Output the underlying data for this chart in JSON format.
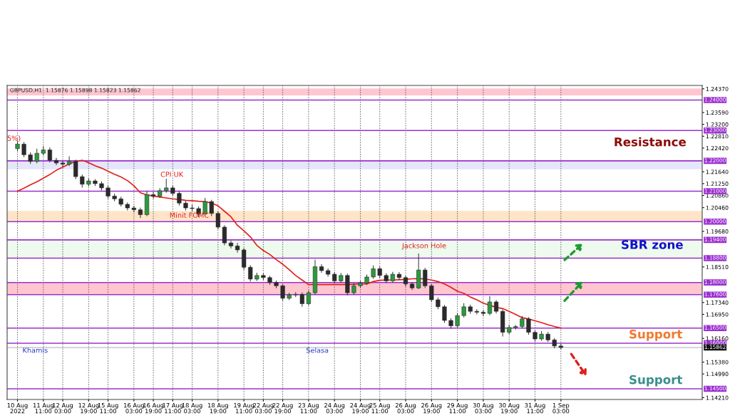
{
  "chart_data": {
    "type": "candlestick",
    "title": "GBPUSD,H1  1.15876 1.15898 1.15823 1.15862",
    "categories": [
      "10 Aug 2022",
      null,
      null,
      null,
      "11 Aug 11:00",
      null,
      null,
      "12 Aug 03:00",
      null,
      null,
      null,
      "12 Aug 19:00",
      null,
      null,
      "15 Aug 11:00",
      null,
      null,
      null,
      "16 Aug 03:00",
      null,
      null,
      "16 Aug 19:00",
      null,
      null,
      "17 Aug 11:00",
      null,
      null,
      "18 Aug 03:00",
      null,
      null,
      null,
      "18 Aug 19:00",
      null,
      null,
      null,
      "19 Aug 11:00",
      null,
      null,
      "22 Aug 03:00",
      null,
      null,
      "22 Aug 19:00",
      null,
      null,
      null,
      "23 Aug 11:00",
      null,
      null,
      null,
      "24 Aug 03:00",
      null,
      null,
      null,
      "24 Aug 19:00",
      null,
      null,
      "25 Aug 11:00",
      null,
      null,
      null,
      "26 Aug 03:00",
      null,
      null,
      null,
      "26 Aug 19:00",
      null,
      null,
      null,
      "29 Aug 11:00",
      null,
      null,
      null,
      "30 Aug 03:00",
      null,
      null,
      null,
      "30 Aug 19:00",
      null,
      null,
      null,
      "31 Aug 11:00",
      null,
      null,
      null,
      "1 Sep 03:00"
    ],
    "ohlc": [
      [
        1.224,
        1.2265,
        1.2232,
        1.2255
      ],
      [
        1.2255,
        1.2262,
        1.2212,
        1.222
      ],
      [
        1.222,
        1.2228,
        1.219,
        1.2198
      ],
      [
        1.2198,
        1.224,
        1.2192,
        1.2225
      ],
      [
        1.2225,
        1.2248,
        1.2218,
        1.2236
      ],
      [
        1.2236,
        1.2244,
        1.2195,
        1.2202
      ],
      [
        1.2202,
        1.221,
        1.2186,
        1.2193
      ],
      [
        1.2193,
        1.22,
        1.218,
        1.2189
      ],
      [
        1.2189,
        1.2215,
        1.2183,
        1.2198
      ],
      [
        1.2198,
        1.2204,
        1.214,
        1.2148
      ],
      [
        1.2148,
        1.2155,
        1.2112,
        1.2123
      ],
      [
        1.2123,
        1.2142,
        1.2116,
        1.2134
      ],
      [
        1.2134,
        1.214,
        1.2117,
        1.2125
      ],
      [
        1.2125,
        1.2132,
        1.2103,
        1.2111
      ],
      [
        1.2111,
        1.2118,
        1.2076,
        1.2084
      ],
      [
        1.2084,
        1.2092,
        1.2067,
        1.2075
      ],
      [
        1.2075,
        1.2082,
        1.205,
        1.2057
      ],
      [
        1.2057,
        1.2063,
        1.2037,
        1.2045
      ],
      [
        1.2045,
        1.2052,
        1.2031,
        1.2039
      ],
      [
        1.2039,
        1.2046,
        1.2012,
        1.2023
      ],
      [
        1.2023,
        1.21,
        1.2018,
        1.2089
      ],
      [
        1.2089,
        1.2097,
        1.2076,
        1.2084
      ],
      [
        1.2084,
        1.211,
        1.2078,
        1.2102
      ],
      [
        1.2102,
        1.2141,
        1.2095,
        1.2111
      ],
      [
        1.2111,
        1.2118,
        1.2085,
        1.2093
      ],
      [
        1.2093,
        1.21,
        1.2053,
        1.2061
      ],
      [
        1.2061,
        1.2068,
        1.2037,
        1.2045
      ],
      [
        1.2045,
        1.2055,
        1.2035,
        1.2043
      ],
      [
        1.2043,
        1.205,
        1.2015,
        1.2025
      ],
      [
        1.2025,
        1.2078,
        1.202,
        1.2066
      ],
      [
        1.2066,
        1.2072,
        1.2018,
        1.2027
      ],
      [
        1.2027,
        1.2033,
        1.1975,
        1.1982
      ],
      [
        1.1982,
        1.1988,
        1.1922,
        1.193
      ],
      [
        1.193,
        1.1937,
        1.1912,
        1.192
      ],
      [
        1.192,
        1.193,
        1.1898,
        1.1907
      ],
      [
        1.1907,
        1.1913,
        1.1842,
        1.185
      ],
      [
        1.185,
        1.1857,
        1.1803,
        1.1811
      ],
      [
        1.1811,
        1.1832,
        1.1805,
        1.1823
      ],
      [
        1.1823,
        1.183,
        1.1808,
        1.1816
      ],
      [
        1.1816,
        1.1822,
        1.1792,
        1.18
      ],
      [
        1.18,
        1.1806,
        1.1781,
        1.1789
      ],
      [
        1.1789,
        1.1795,
        1.174,
        1.1748
      ],
      [
        1.1748,
        1.1766,
        1.1742,
        1.1759
      ],
      [
        1.1759,
        1.1768,
        1.1752,
        1.1761
      ],
      [
        1.1761,
        1.1767,
        1.172,
        1.173
      ],
      [
        1.173,
        1.1773,
        1.1725,
        1.1766
      ],
      [
        1.1766,
        1.1875,
        1.176,
        1.1852
      ],
      [
        1.1852,
        1.186,
        1.1832,
        1.1839
      ],
      [
        1.1839,
        1.1846,
        1.1819,
        1.1827
      ],
      [
        1.1827,
        1.1834,
        1.1797,
        1.1805
      ],
      [
        1.1805,
        1.1831,
        1.1799,
        1.1823
      ],
      [
        1.1823,
        1.1829,
        1.1758,
        1.1766
      ],
      [
        1.1766,
        1.1797,
        1.176,
        1.1789
      ],
      [
        1.1789,
        1.1805,
        1.1782,
        1.1798
      ],
      [
        1.1798,
        1.1826,
        1.1792,
        1.1818
      ],
      [
        1.1818,
        1.1856,
        1.1812,
        1.1845
      ],
      [
        1.1845,
        1.1852,
        1.1815,
        1.1823
      ],
      [
        1.1823,
        1.183,
        1.1798,
        1.1805
      ],
      [
        1.1805,
        1.1835,
        1.1799,
        1.1827
      ],
      [
        1.1827,
        1.1834,
        1.1809,
        1.1816
      ],
      [
        1.1816,
        1.1822,
        1.1787,
        1.1795
      ],
      [
        1.1795,
        1.18,
        1.1775,
        1.1782
      ],
      [
        1.1782,
        1.1895,
        1.1778,
        1.1841
      ],
      [
        1.1841,
        1.1848,
        1.1782,
        1.1789
      ],
      [
        1.1789,
        1.1795,
        1.1736,
        1.1743
      ],
      [
        1.1743,
        1.175,
        1.1712,
        1.172
      ],
      [
        1.172,
        1.1726,
        1.1667,
        1.1675
      ],
      [
        1.1675,
        1.1682,
        1.1648,
        1.1657
      ],
      [
        1.1657,
        1.1699,
        1.1652,
        1.1691
      ],
      [
        1.1691,
        1.1732,
        1.1685,
        1.172
      ],
      [
        1.172,
        1.1727,
        1.1697,
        1.1705
      ],
      [
        1.1705,
        1.1712,
        1.1695,
        1.1702
      ],
      [
        1.1702,
        1.1709,
        1.169,
        1.1698
      ],
      [
        1.1698,
        1.1755,
        1.1692,
        1.1736
      ],
      [
        1.1736,
        1.1742,
        1.1698,
        1.1705
      ],
      [
        1.1705,
        1.1711,
        1.1622,
        1.1636
      ],
      [
        1.1636,
        1.166,
        1.163,
        1.1652
      ],
      [
        1.1652,
        1.166,
        1.1645,
        1.1655
      ],
      [
        1.1655,
        1.169,
        1.1649,
        1.168
      ],
      [
        1.168,
        1.1686,
        1.1628,
        1.1636
      ],
      [
        1.1636,
        1.1642,
        1.1606,
        1.1614
      ],
      [
        1.1614,
        1.164,
        1.1608,
        1.163
      ],
      [
        1.163,
        1.1637,
        1.1604,
        1.1611
      ],
      [
        1.1611,
        1.1617,
        1.1583,
        1.1591
      ],
      [
        1.1591,
        1.1598,
        1.158,
        1.1586
      ]
    ],
    "series": [
      {
        "type": "line",
        "color": "#e0201b",
        "values": [
          1.21,
          1.211,
          1.2121,
          1.2131,
          1.2143,
          1.2155,
          1.2169,
          1.2179,
          1.219,
          1.2198,
          1.2202,
          1.2194,
          1.2184,
          1.2176,
          1.2166,
          1.2156,
          1.2147,
          1.2135,
          1.2118,
          1.2095,
          1.2088,
          1.2084,
          1.2081,
          1.2078,
          1.2075,
          1.2073,
          1.207,
          1.2069,
          1.2067,
          1.2066,
          1.2061,
          1.2052,
          1.2034,
          1.2016,
          1.1988,
          1.197,
          1.195,
          1.1922,
          1.1905,
          1.1892,
          1.1875,
          1.186,
          1.1842,
          1.1823,
          1.1808,
          1.1793,
          1.1793,
          1.1793,
          1.1793,
          1.1793,
          1.1793,
          1.1793,
          1.1794,
          1.1795,
          1.1795,
          1.1803,
          1.1807,
          1.1808,
          1.1808,
          1.1809,
          1.181,
          1.1812,
          1.1813,
          1.1811,
          1.1808,
          1.1803,
          1.1795,
          1.1784,
          1.1771,
          1.1764,
          1.1752,
          1.1743,
          1.1732,
          1.1725,
          1.1718,
          1.1714,
          1.1705,
          1.1695,
          1.1684,
          1.168,
          1.1674,
          1.1668,
          1.1661,
          1.1655,
          1.165
        ]
      }
    ],
    "ylim": [
      1.1415,
      1.2448
    ],
    "yticks": [
      {
        "value": 1.2437,
        "label": "1.24370"
      },
      {
        "value": 1.2359,
        "label": "1.23590"
      },
      {
        "value": 1.232,
        "label": "1.23200"
      },
      {
        "value": 1.2281,
        "label": "1.22810"
      },
      {
        "value": 1.2242,
        "label": "1.22420"
      },
      {
        "value": 1.2164,
        "label": "1.21640"
      },
      {
        "value": 1.2125,
        "label": "1.21250"
      },
      {
        "value": 1.2086,
        "label": "1.20860"
      },
      {
        "value": 1.2046,
        "label": "1.20460"
      },
      {
        "value": 1.1968,
        "label": "1.19680"
      },
      {
        "value": 1.1851,
        "label": "1.18510"
      },
      {
        "value": 1.1734,
        "label": "1.17340"
      },
      {
        "value": 1.1695,
        "label": "1.16950"
      },
      {
        "value": 1.1616,
        "label": "1.16160"
      },
      {
        "value": 1.1538,
        "label": "1.15380"
      },
      {
        "value": 1.1499,
        "label": "1.14990"
      },
      {
        "value": 1.1421,
        "label": "1.14210"
      }
    ],
    "ref_lines": [
      {
        "axis": "y",
        "value": 1.24,
        "label": "1.24000",
        "color": "#9b30d0"
      },
      {
        "axis": "y",
        "value": 1.23,
        "label": "1.23000",
        "color": "#9b30d0"
      },
      {
        "axis": "y",
        "value": 1.22,
        "label": "1.22000",
        "color": "#9b30d0"
      },
      {
        "axis": "y",
        "value": 1.21,
        "label": "1.21000",
        "color": "#9b30d0"
      },
      {
        "axis": "y",
        "value": 1.2,
        "label": "1.20000",
        "color": "#9b30d0"
      },
      {
        "axis": "y",
        "value": 1.194,
        "label": "1.19400",
        "color": "#9b30d0"
      },
      {
        "axis": "y",
        "value": 1.188,
        "label": "1.18800",
        "color": "#9b30d0"
      },
      {
        "axis": "y",
        "value": 1.18,
        "label": "1.18000",
        "color": "#9b30d0"
      },
      {
        "axis": "y",
        "value": 1.176,
        "label": "1.17600",
        "color": "#9b30d0"
      },
      {
        "axis": "y",
        "value": 1.165,
        "label": "1.16500",
        "color": "#9b30d0"
      },
      {
        "axis": "y",
        "value": 1.16,
        "label": "1.16000",
        "color": "#9b30d0"
      },
      {
        "axis": "y",
        "value": 1.145,
        "label": "1.14500",
        "color": "#9b30d0"
      },
      {
        "axis": "y",
        "value": 1.15862,
        "label": "1.15862",
        "color": "#c8c8c8"
      }
    ],
    "bands": [
      {
        "axis": "y",
        "from": 1.2415,
        "to": 1.2438,
        "color": "#ffc6cf"
      },
      {
        "axis": "y",
        "from": 1.2172,
        "to": 1.22,
        "color": "#e6e6fa"
      },
      {
        "axis": "y",
        "from": 1.2,
        "to": 1.2035,
        "color": "#ffe4c8"
      },
      {
        "axis": "y",
        "from": 1.188,
        "to": 1.194,
        "color": "#eefaee"
      },
      {
        "axis": "y",
        "from": 1.176,
        "to": 1.18,
        "color": "#ffc6cf"
      }
    ],
    "annotations": [
      "5%)",
      "CPI UK",
      "Minit FOMC",
      "Jackson Hole",
      "Khamis",
      "Selasa",
      "Resistance",
      "SBR zone",
      "Support",
      "Support"
    ],
    "grid": "x"
  }
}
